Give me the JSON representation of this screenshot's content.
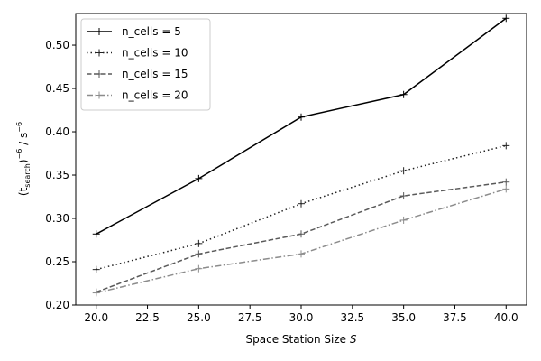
{
  "chart_data": {
    "type": "line",
    "title": "",
    "xlabel_prefix": "Space Station Size ",
    "xlabel_var": "S",
    "ylabel_base": "(t",
    "ylabel_sub": "search",
    "ylabel_tail": ")",
    "ylabel_exp": "−6",
    "ylabel_unit": " / s",
    "ylabel_unit_exp": "−6",
    "x": [
      20,
      25,
      30,
      35,
      40
    ],
    "xlim": [
      19.0,
      41.0
    ],
    "ylim": [
      0.2,
      0.5365
    ],
    "x_ticks": [
      20.0,
      22.5,
      25.0,
      27.5,
      30.0,
      32.5,
      35.0,
      37.5,
      40.0
    ],
    "x_tick_labels": [
      "20.0",
      "22.5",
      "25.0",
      "27.5",
      "30.0",
      "32.5",
      "35.0",
      "37.5",
      "40.0"
    ],
    "y_ticks": [
      0.2,
      0.25,
      0.3,
      0.35,
      0.4,
      0.45,
      0.5
    ],
    "y_tick_labels": [
      "0.20",
      "0.25",
      "0.30",
      "0.35",
      "0.40",
      "0.45",
      "0.50"
    ],
    "grid": false,
    "legend_position": "upper-left",
    "series": [
      {
        "name": "n_cells = 5",
        "values": [
          0.282,
          0.346,
          0.417,
          0.443,
          0.531
        ],
        "color": "#000000",
        "dash": "solid"
      },
      {
        "name": "n_cells = 10",
        "values": [
          0.241,
          0.271,
          0.317,
          0.355,
          0.384
        ],
        "color": "#222222",
        "dash": "dotted"
      },
      {
        "name": "n_cells = 15",
        "values": [
          0.215,
          0.259,
          0.282,
          0.326,
          0.342
        ],
        "color": "#5a5a5a",
        "dash": "dashed"
      },
      {
        "name": "n_cells = 20",
        "values": [
          0.214,
          0.242,
          0.259,
          0.298,
          0.334
        ],
        "color": "#8c8c8c",
        "dash": "dashdot"
      }
    ]
  }
}
